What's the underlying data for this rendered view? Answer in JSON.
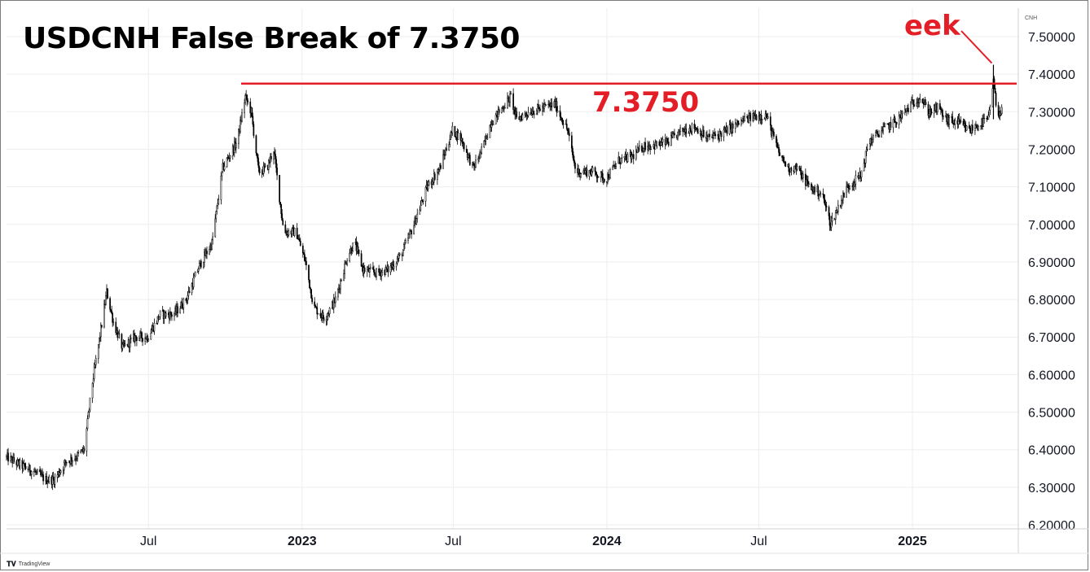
{
  "branding": {
    "icon": "tradingview-logo-icon",
    "text": "TradingView"
  },
  "chart_data": {
    "type": "candlestick",
    "title": "USDCNH False Break of 7.3750",
    "symbol_label": "CNH",
    "ylim": [
      6.2,
      7.55
    ],
    "y_ticks": [
      "7.50000",
      "7.40000",
      "7.30000",
      "7.20000",
      "7.10000",
      "7.00000",
      "6.90000",
      "6.80000",
      "6.70000",
      "6.60000",
      "6.50000",
      "6.40000",
      "6.30000",
      "6.20000"
    ],
    "x_ticks": [
      {
        "label": "Jul",
        "date": "2022-07-01",
        "bold": false
      },
      {
        "label": "2023",
        "date": "2023-01-01",
        "bold": true
      },
      {
        "label": "Jul",
        "date": "2023-07-01",
        "bold": false
      },
      {
        "label": "2024",
        "date": "2024-01-01",
        "bold": true
      },
      {
        "label": "Jul",
        "date": "2024-07-01",
        "bold": false
      },
      {
        "label": "2025",
        "date": "2025-01-01",
        "bold": true
      }
    ],
    "x_range": [
      "2022-01-12",
      "2025-04-30"
    ],
    "grid": true,
    "annotations": {
      "level_value": 7.375,
      "level_line_start": "2022-10-20",
      "level_label": "7.3750",
      "callout_label": "eek",
      "callout_target": {
        "date": "2025-04-08",
        "value": 7.425
      },
      "colors": {
        "annotation": "#e41e26",
        "candle": "#000000",
        "grid": "#eeeeee"
      }
    },
    "series": [
      {
        "points": [
          [
            "2022-01-12",
            6.38
          ],
          [
            "2022-01-28",
            6.36
          ],
          [
            "2022-02-15",
            6.34
          ],
          [
            "2022-02-28",
            6.32
          ],
          [
            "2022-03-10",
            6.32
          ],
          [
            "2022-03-25",
            6.37
          ],
          [
            "2022-04-05",
            6.38
          ],
          [
            "2022-04-15",
            6.4
          ],
          [
            "2022-04-25",
            6.58
          ],
          [
            "2022-05-05",
            6.72
          ],
          [
            "2022-05-12",
            6.82
          ],
          [
            "2022-05-20",
            6.74
          ],
          [
            "2022-05-31",
            6.67
          ],
          [
            "2022-06-15",
            6.7
          ],
          [
            "2022-06-30",
            6.7
          ],
          [
            "2022-07-15",
            6.76
          ],
          [
            "2022-07-31",
            6.76
          ],
          [
            "2022-08-15",
            6.8
          ],
          [
            "2022-08-31",
            6.89
          ],
          [
            "2022-09-15",
            6.95
          ],
          [
            "2022-09-28",
            7.15
          ],
          [
            "2022-10-15",
            7.22
          ],
          [
            "2022-10-25",
            7.34
          ],
          [
            "2022-11-01",
            7.3
          ],
          [
            "2022-11-10",
            7.14
          ],
          [
            "2022-11-20",
            7.15
          ],
          [
            "2022-11-28",
            7.2
          ],
          [
            "2022-12-10",
            6.98
          ],
          [
            "2022-12-25",
            6.98
          ],
          [
            "2023-01-05",
            6.9
          ],
          [
            "2023-01-15",
            6.78
          ],
          [
            "2023-01-28",
            6.75
          ],
          [
            "2023-02-10",
            6.8
          ],
          [
            "2023-02-25",
            6.92
          ],
          [
            "2023-03-05",
            6.95
          ],
          [
            "2023-03-15",
            6.88
          ],
          [
            "2023-03-31",
            6.87
          ],
          [
            "2023-04-15",
            6.88
          ],
          [
            "2023-04-30",
            6.92
          ],
          [
            "2023-05-15",
            7.0
          ],
          [
            "2023-05-31",
            7.1
          ],
          [
            "2023-06-15",
            7.15
          ],
          [
            "2023-06-30",
            7.25
          ],
          [
            "2023-07-10",
            7.23
          ],
          [
            "2023-07-25",
            7.15
          ],
          [
            "2023-08-05",
            7.2
          ],
          [
            "2023-08-15",
            7.27
          ],
          [
            "2023-08-25",
            7.3
          ],
          [
            "2023-09-08",
            7.34
          ],
          [
            "2023-09-15",
            7.28
          ],
          [
            "2023-09-30",
            7.3
          ],
          [
            "2023-10-15",
            7.31
          ],
          [
            "2023-10-31",
            7.32
          ],
          [
            "2023-11-15",
            7.25
          ],
          [
            "2023-11-25",
            7.14
          ],
          [
            "2023-12-15",
            7.14
          ],
          [
            "2023-12-31",
            7.12
          ],
          [
            "2024-01-15",
            7.17
          ],
          [
            "2024-01-31",
            7.18
          ],
          [
            "2024-02-15",
            7.21
          ],
          [
            "2024-02-28",
            7.21
          ],
          [
            "2024-03-15",
            7.22
          ],
          [
            "2024-03-31",
            7.25
          ],
          [
            "2024-04-15",
            7.26
          ],
          [
            "2024-04-30",
            7.23
          ],
          [
            "2024-05-15",
            7.24
          ],
          [
            "2024-05-31",
            7.26
          ],
          [
            "2024-06-15",
            7.28
          ],
          [
            "2024-06-30",
            7.29
          ],
          [
            "2024-07-10",
            7.29
          ],
          [
            "2024-07-25",
            7.19
          ],
          [
            "2024-08-05",
            7.15
          ],
          [
            "2024-08-15",
            7.15
          ],
          [
            "2024-08-31",
            7.1
          ],
          [
            "2024-09-15",
            7.08
          ],
          [
            "2024-09-25",
            7.0
          ],
          [
            "2024-10-05",
            7.05
          ],
          [
            "2024-10-15",
            7.1
          ],
          [
            "2024-10-31",
            7.13
          ],
          [
            "2024-11-10",
            7.22
          ],
          [
            "2024-11-25",
            7.25
          ],
          [
            "2024-12-15",
            7.28
          ],
          [
            "2024-12-31",
            7.32
          ],
          [
            "2025-01-10",
            7.34
          ],
          [
            "2025-01-20",
            7.3
          ],
          [
            "2025-02-01",
            7.31
          ],
          [
            "2025-02-10",
            7.28
          ],
          [
            "2025-02-25",
            7.27
          ],
          [
            "2025-03-10",
            7.25
          ],
          [
            "2025-03-25",
            7.27
          ],
          [
            "2025-04-02",
            7.28
          ],
          [
            "2025-04-08",
            7.38
          ],
          [
            "2025-04-12",
            7.3
          ],
          [
            "2025-04-20",
            7.3
          ]
        ]
      }
    ]
  }
}
